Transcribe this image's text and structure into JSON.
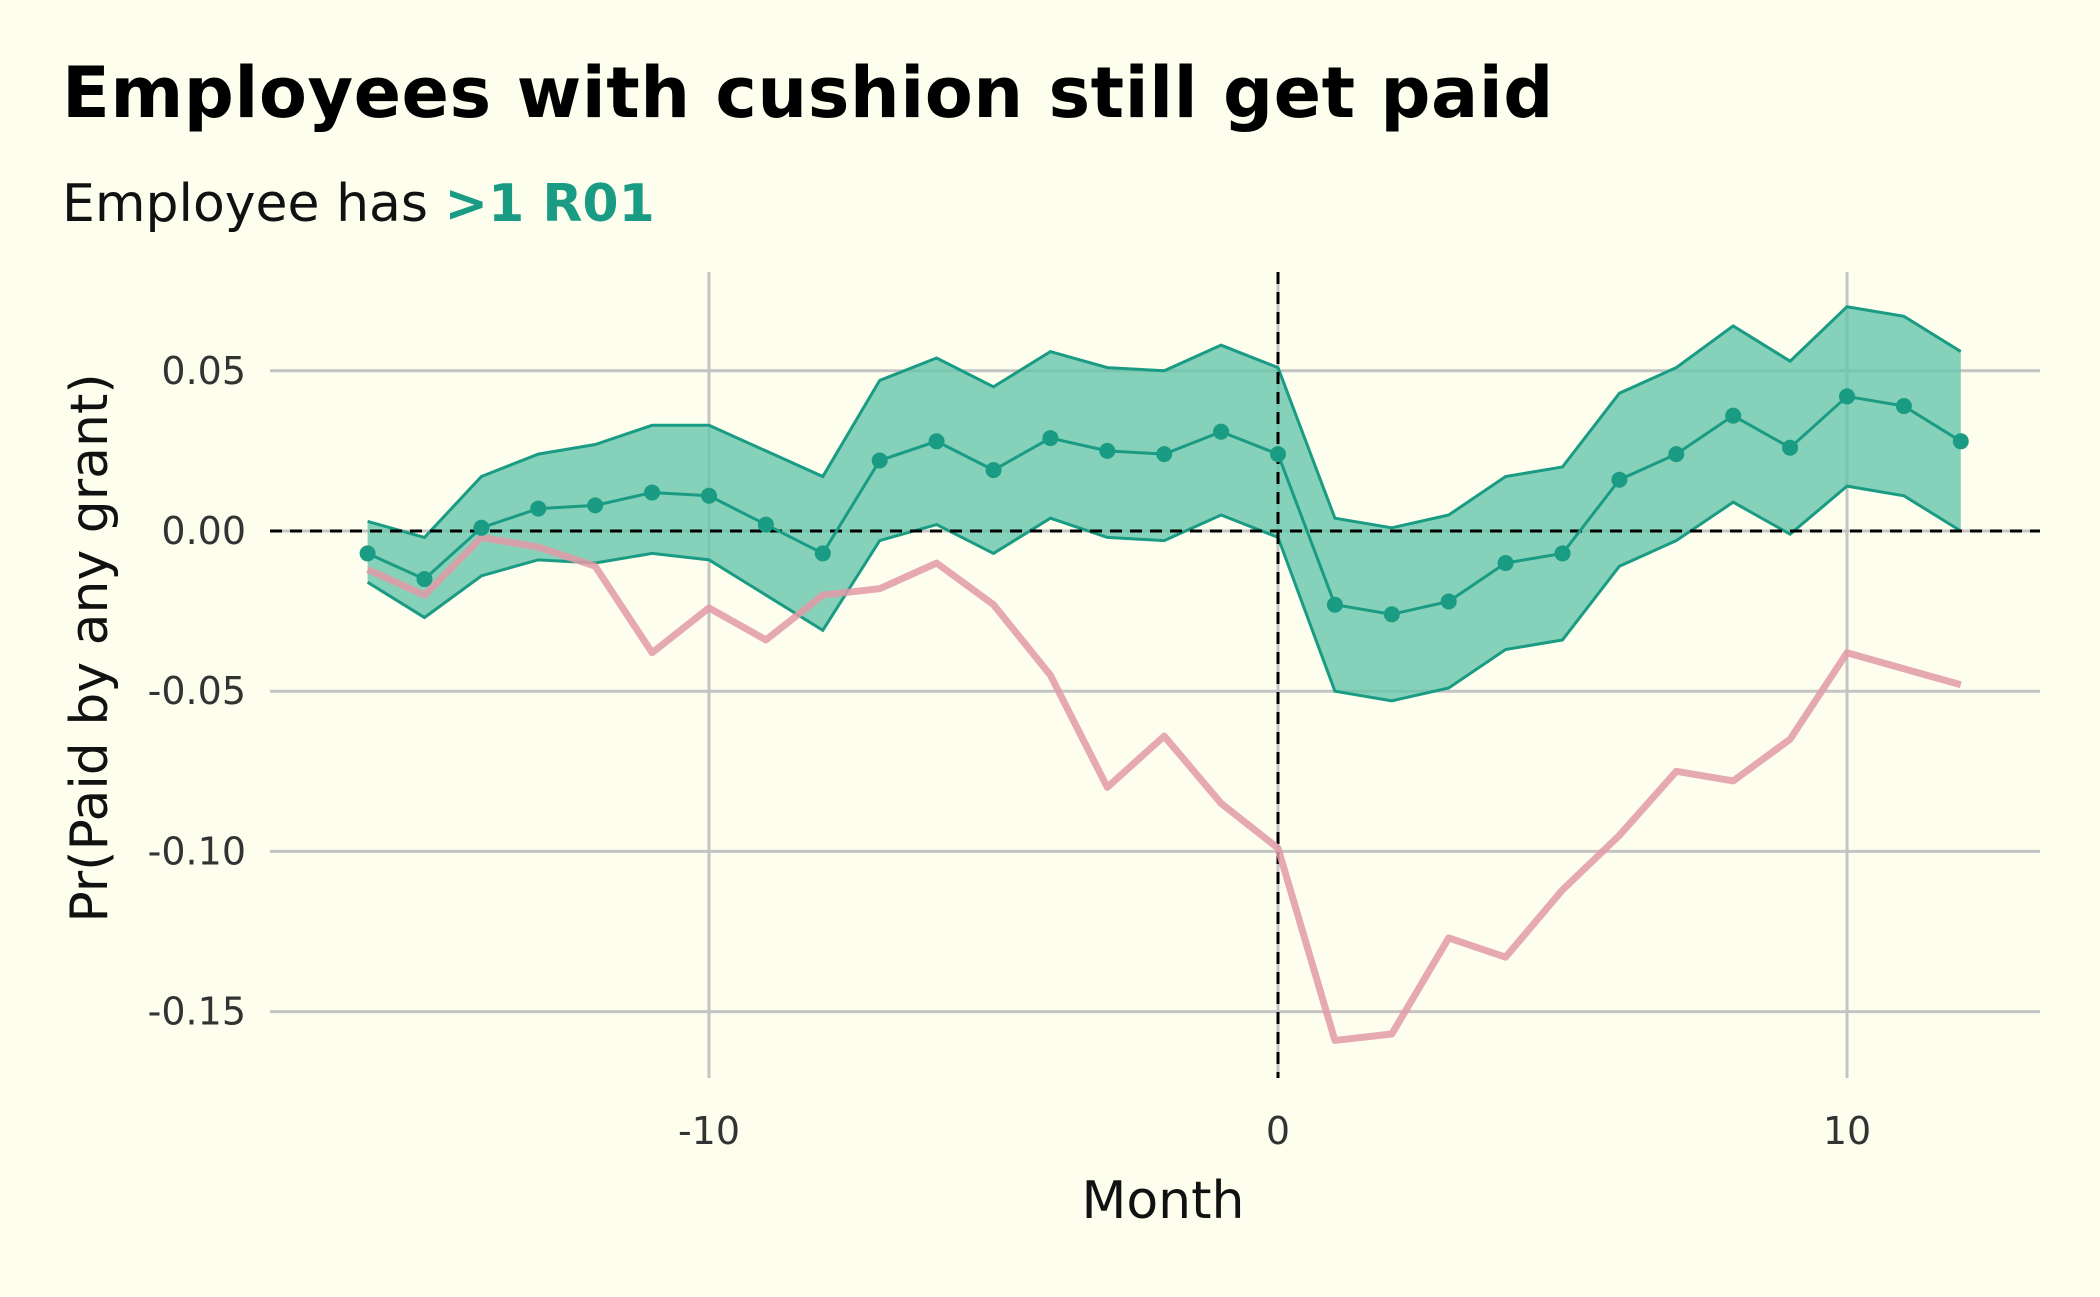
{
  "chart_data": {
    "type": "line",
    "title": "Employees with cushion still get paid",
    "subtitle_prefix": "Employee has ",
    "subtitle_highlight": ">1 R01",
    "xlabel": "Month",
    "ylabel": "Pr(Paid by any grant)",
    "xlim": [
      -16.5,
      13.5
    ],
    "ylim": [
      -0.172,
      0.08
    ],
    "x_ticks": [
      -10,
      0,
      10
    ],
    "x_tick_labels": [
      "-10",
      "0",
      "10"
    ],
    "y_ticks": [
      0.05,
      0.0,
      -0.05,
      -0.1,
      -0.15
    ],
    "y_tick_labels": [
      "0.05",
      "0.00",
      "-0.05",
      "-0.10",
      "-0.15"
    ],
    "grid": true,
    "reference_lines": {
      "x": 0,
      "y": 0
    },
    "colors": {
      "background": "#fdfeee",
      "grid": "#c4c4c4",
      "ribbon_fill": "#68c6ab",
      "ribbon_line": "#1a9b83",
      "estimate": "#1a9b83",
      "comparison": "#e39aa6",
      "highlight": "#1a9b83"
    },
    "series": [
      {
        "role": "estimate",
        "x": [
          -16,
          -15,
          -14,
          -13,
          -12,
          -11,
          -10,
          -9,
          -8,
          -7,
          -6,
          -5,
          -4,
          -3,
          -2,
          -1,
          0,
          1,
          2,
          3,
          4,
          5,
          6,
          7,
          8,
          9,
          10,
          11,
          12
        ],
        "y": [
          -0.007,
          -0.015,
          0.001,
          0.007,
          0.008,
          0.012,
          0.011,
          0.002,
          -0.007,
          0.022,
          0.028,
          0.019,
          0.029,
          0.025,
          0.024,
          0.031,
          0.024,
          -0.023,
          -0.026,
          -0.022,
          -0.01,
          -0.007,
          0.016,
          0.024,
          0.036,
          0.026,
          0.042,
          0.039,
          0.028
        ],
        "lower": [
          -0.016,
          -0.027,
          -0.014,
          -0.009,
          -0.01,
          -0.007,
          -0.009,
          -0.02,
          -0.031,
          -0.003,
          0.002,
          -0.007,
          0.004,
          -0.002,
          -0.003,
          0.005,
          -0.002,
          -0.05,
          -0.053,
          -0.049,
          -0.037,
          -0.034,
          -0.011,
          -0.003,
          0.009,
          -0.001,
          0.014,
          0.011,
          0.0
        ],
        "upper": [
          0.003,
          -0.002,
          0.017,
          0.024,
          0.027,
          0.033,
          0.033,
          0.025,
          0.017,
          0.047,
          0.054,
          0.045,
          0.056,
          0.051,
          0.05,
          0.058,
          0.051,
          0.004,
          0.001,
          0.005,
          0.017,
          0.02,
          0.043,
          0.051,
          0.064,
          0.053,
          0.07,
          0.067,
          0.056
        ]
      },
      {
        "role": "comparison",
        "x": [
          -16,
          -15,
          -14,
          -13,
          -12,
          -11,
          -10,
          -9,
          -8,
          -7,
          -6,
          -5,
          -4,
          -3,
          -2,
          -1,
          0,
          1,
          2,
          3,
          4,
          5,
          6,
          7,
          8,
          9,
          10,
          11,
          12
        ],
        "y": [
          -0.012,
          -0.02,
          -0.002,
          -0.005,
          -0.011,
          -0.038,
          -0.024,
          -0.034,
          -0.02,
          -0.018,
          -0.01,
          -0.023,
          -0.045,
          -0.08,
          -0.064,
          -0.085,
          -0.099,
          -0.159,
          -0.157,
          -0.127,
          -0.133,
          -0.112,
          -0.095,
          -0.075,
          -0.078,
          -0.065,
          -0.038,
          -0.043,
          -0.048
        ]
      }
    ]
  }
}
